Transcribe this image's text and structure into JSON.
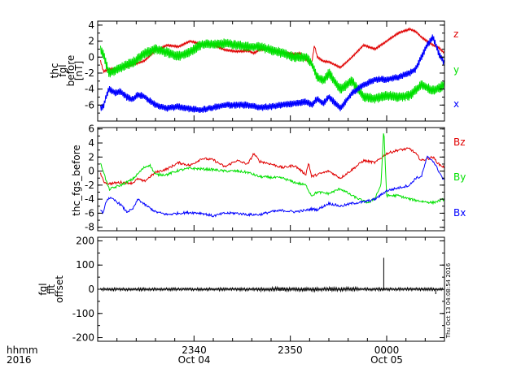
{
  "chart_data": [
    {
      "type": "line",
      "ylabel": [
        "thc",
        "fgl",
        "before",
        "[nT]"
      ],
      "ylim": [
        -8,
        4.5
      ],
      "yticks": [
        -6,
        -4,
        -2,
        0,
        2,
        4
      ],
      "x_range_hours": [
        23.5,
        24.1
      ],
      "series": [
        {
          "name": "z",
          "color": "#e00000",
          "band": 0.25,
          "points": [
            [
              23.505,
              -0.5
            ],
            [
              23.51,
              -1.8
            ],
            [
              23.52,
              -1.5
            ],
            [
              23.54,
              -1.4
            ],
            [
              23.56,
              -1.0
            ],
            [
              23.58,
              -0.5
            ],
            [
              23.6,
              0.8
            ],
            [
              23.62,
              1.5
            ],
            [
              23.64,
              1.3
            ],
            [
              23.66,
              2.0
            ],
            [
              23.68,
              1.6
            ],
            [
              23.7,
              1.5
            ],
            [
              23.72,
              0.9
            ],
            [
              23.74,
              0.7
            ],
            [
              23.76,
              0.8
            ],
            [
              23.77,
              0.5
            ],
            [
              23.78,
              0.9
            ],
            [
              23.8,
              1.0
            ],
            [
              23.82,
              0.6
            ],
            [
              23.84,
              0.4
            ],
            [
              23.85,
              0.5
            ],
            [
              23.86,
              -0.3
            ],
            [
              23.87,
              -0.9
            ],
            [
              23.875,
              1.5
            ],
            [
              23.88,
              0.0
            ],
            [
              23.89,
              -0.5
            ],
            [
              23.9,
              -0.6
            ],
            [
              23.92,
              -1.3
            ],
            [
              23.94,
              0.0
            ],
            [
              23.96,
              1.5
            ],
            [
              23.98,
              1.0
            ],
            [
              24.0,
              2.0
            ],
            [
              24.02,
              3.0
            ],
            [
              24.04,
              3.5
            ],
            [
              24.05,
              3.2
            ],
            [
              24.06,
              2.5
            ],
            [
              24.08,
              1.5
            ],
            [
              24.09,
              1.2
            ],
            [
              24.1,
              0.5
            ]
          ]
        },
        {
          "name": "y",
          "color": "#00e000",
          "band": 1.3,
          "points": [
            [
              23.505,
              1.0
            ],
            [
              23.51,
              0.3
            ],
            [
              23.515,
              -1.0
            ],
            [
              23.52,
              -2.0
            ],
            [
              23.54,
              -1.3
            ],
            [
              23.56,
              -0.7
            ],
            [
              23.58,
              0.4
            ],
            [
              23.6,
              1.0
            ],
            [
              23.62,
              0.6
            ],
            [
              23.64,
              0.1
            ],
            [
              23.66,
              0.7
            ],
            [
              23.68,
              1.6
            ],
            [
              23.7,
              1.6
            ],
            [
              23.72,
              1.7
            ],
            [
              23.74,
              1.5
            ],
            [
              23.76,
              1.3
            ],
            [
              23.78,
              1.3
            ],
            [
              23.8,
              0.9
            ],
            [
              23.82,
              0.5
            ],
            [
              23.84,
              0.0
            ],
            [
              23.86,
              0.0
            ],
            [
              23.87,
              -0.8
            ],
            [
              23.88,
              -2.5
            ],
            [
              23.89,
              -3.0
            ],
            [
              23.9,
              -2.0
            ],
            [
              23.92,
              -4.0
            ],
            [
              23.94,
              -3.0
            ],
            [
              23.96,
              -5.0
            ],
            [
              23.98,
              -5.2
            ],
            [
              24.0,
              -4.8
            ],
            [
              24.02,
              -5.0
            ],
            [
              24.04,
              -4.8
            ],
            [
              24.06,
              -3.5
            ],
            [
              24.08,
              -4.2
            ],
            [
              24.1,
              -3.5
            ]
          ]
        },
        {
          "name": "x",
          "color": "#0000ff",
          "band": 0.9,
          "points": [
            [
              23.505,
              -6.4
            ],
            [
              23.51,
              -6.2
            ],
            [
              23.515,
              -4.8
            ],
            [
              23.52,
              -4.0
            ],
            [
              23.53,
              -4.5
            ],
            [
              23.54,
              -4.3
            ],
            [
              23.55,
              -5.0
            ],
            [
              23.56,
              -5.3
            ],
            [
              23.57,
              -4.7
            ],
            [
              23.58,
              -4.9
            ],
            [
              23.6,
              -6.0
            ],
            [
              23.62,
              -6.4
            ],
            [
              23.64,
              -6.2
            ],
            [
              23.66,
              -6.5
            ],
            [
              23.68,
              -6.6
            ],
            [
              23.7,
              -6.3
            ],
            [
              23.72,
              -6.0
            ],
            [
              23.74,
              -6.0
            ],
            [
              23.76,
              -6.0
            ],
            [
              23.78,
              -6.3
            ],
            [
              23.8,
              -6.2
            ],
            [
              23.82,
              -6.0
            ],
            [
              23.84,
              -5.8
            ],
            [
              23.86,
              -5.6
            ],
            [
              23.87,
              -6.0
            ],
            [
              23.88,
              -5.2
            ],
            [
              23.89,
              -5.8
            ],
            [
              23.9,
              -5.0
            ],
            [
              23.92,
              -6.4
            ],
            [
              23.94,
              -4.5
            ],
            [
              23.96,
              -3.5
            ],
            [
              23.98,
              -2.8
            ],
            [
              24.0,
              -2.8
            ],
            [
              24.02,
              -2.5
            ],
            [
              24.04,
              -2.0
            ],
            [
              24.05,
              -1.5
            ],
            [
              24.06,
              0.0
            ],
            [
              24.07,
              1.5
            ],
            [
              24.08,
              2.5
            ],
            [
              24.09,
              0.5
            ],
            [
              24.1,
              -0.8
            ]
          ]
        }
      ]
    },
    {
      "type": "line",
      "ylabel": [
        "thc_fgs_before"
      ],
      "ylim": [
        -8.5,
        6.2
      ],
      "yticks": [
        -8,
        -6,
        -4,
        -2,
        0,
        2,
        4,
        6
      ],
      "x_range_hours": [
        23.5,
        24.1
      ],
      "series": [
        {
          "name": "Bz",
          "color": "#e00000",
          "points": [
            [
              23.505,
              -0.3
            ],
            [
              23.51,
              -1.5
            ],
            [
              23.52,
              -1.8
            ],
            [
              23.54,
              -1.6
            ],
            [
              23.56,
              -1.7
            ],
            [
              23.57,
              -1.1
            ],
            [
              23.58,
              -1.5
            ],
            [
              23.6,
              -0.2
            ],
            [
              23.62,
              0.3
            ],
            [
              23.64,
              1.2
            ],
            [
              23.66,
              0.8
            ],
            [
              23.68,
              1.8
            ],
            [
              23.7,
              1.6
            ],
            [
              23.72,
              0.6
            ],
            [
              23.74,
              1.5
            ],
            [
              23.76,
              1.0
            ],
            [
              23.77,
              2.5
            ],
            [
              23.78,
              1.4
            ],
            [
              23.8,
              1.0
            ],
            [
              23.82,
              0.5
            ],
            [
              23.84,
              0.8
            ],
            [
              23.85,
              0.2
            ],
            [
              23.86,
              -0.5
            ],
            [
              23.865,
              1.2
            ],
            [
              23.87,
              -0.8
            ],
            [
              23.88,
              -0.5
            ],
            [
              23.9,
              0.0
            ],
            [
              23.92,
              -1.0
            ],
            [
              23.94,
              0.2
            ],
            [
              23.96,
              1.5
            ],
            [
              23.98,
              1.2
            ],
            [
              24.0,
              2.5
            ],
            [
              24.02,
              3.0
            ],
            [
              24.04,
              3.2
            ],
            [
              24.05,
              2.5
            ],
            [
              24.06,
              1.5
            ],
            [
              24.08,
              2.0
            ],
            [
              24.09,
              1.0
            ],
            [
              24.1,
              0.5
            ]
          ]
        },
        {
          "name": "By",
          "color": "#00e000",
          "points": [
            [
              23.505,
              1.0
            ],
            [
              23.51,
              0.0
            ],
            [
              23.515,
              -1.5
            ],
            [
              23.52,
              -2.6
            ],
            [
              23.54,
              -2.0
            ],
            [
              23.56,
              -1.2
            ],
            [
              23.58,
              0.5
            ],
            [
              23.59,
              0.9
            ],
            [
              23.6,
              -0.5
            ],
            [
              23.62,
              -0.5
            ],
            [
              23.64,
              0.1
            ],
            [
              23.66,
              0.4
            ],
            [
              23.68,
              0.3
            ],
            [
              23.7,
              0.2
            ],
            [
              23.72,
              0.0
            ],
            [
              23.74,
              0.0
            ],
            [
              23.76,
              -0.2
            ],
            [
              23.78,
              -0.8
            ],
            [
              23.8,
              -0.9
            ],
            [
              23.82,
              -1.0
            ],
            [
              23.84,
              -1.6
            ],
            [
              23.86,
              -2.0
            ],
            [
              23.87,
              -3.5
            ],
            [
              23.88,
              -3.0
            ],
            [
              23.9,
              -3.2
            ],
            [
              23.92,
              -2.5
            ],
            [
              23.94,
              -3.5
            ],
            [
              23.96,
              -4.3
            ],
            [
              23.97,
              -4.5
            ],
            [
              23.98,
              -3.8
            ],
            [
              23.99,
              -2.0
            ],
            [
              23.995,
              6.0
            ],
            [
              24.0,
              -3.5
            ],
            [
              24.02,
              -3.5
            ],
            [
              24.04,
              -4.0
            ],
            [
              24.06,
              -4.3
            ],
            [
              24.08,
              -4.5
            ],
            [
              24.1,
              -4.0
            ]
          ]
        },
        {
          "name": "Bx",
          "color": "#0000ff",
          "points": [
            [
              23.505,
              -5.6
            ],
            [
              23.51,
              -6.0
            ],
            [
              23.515,
              -4.2
            ],
            [
              23.52,
              -3.8
            ],
            [
              23.53,
              -4.2
            ],
            [
              23.54,
              -4.8
            ],
            [
              23.55,
              -5.8
            ],
            [
              23.56,
              -5.5
            ],
            [
              23.57,
              -4.0
            ],
            [
              23.58,
              -4.7
            ],
            [
              23.6,
              -5.8
            ],
            [
              23.62,
              -6.2
            ],
            [
              23.64,
              -6.0
            ],
            [
              23.66,
              -5.9
            ],
            [
              23.68,
              -6.0
            ],
            [
              23.7,
              -6.4
            ],
            [
              23.72,
              -6.0
            ],
            [
              23.74,
              -6.0
            ],
            [
              23.76,
              -6.2
            ],
            [
              23.78,
              -6.2
            ],
            [
              23.8,
              -5.8
            ],
            [
              23.82,
              -5.6
            ],
            [
              23.84,
              -5.8
            ],
            [
              23.86,
              -5.6
            ],
            [
              23.87,
              -5.4
            ],
            [
              23.88,
              -5.5
            ],
            [
              23.9,
              -4.6
            ],
            [
              23.92,
              -5.0
            ],
            [
              23.94,
              -4.6
            ],
            [
              23.96,
              -4.4
            ],
            [
              23.98,
              -4.0
            ],
            [
              24.0,
              -2.8
            ],
            [
              24.02,
              -2.4
            ],
            [
              24.04,
              -2.0
            ],
            [
              24.05,
              -1.0
            ],
            [
              24.06,
              -0.8
            ],
            [
              24.07,
              2.0
            ],
            [
              24.08,
              1.5
            ],
            [
              24.09,
              0.0
            ],
            [
              24.1,
              -1.5
            ]
          ]
        }
      ]
    },
    {
      "type": "line",
      "ylabel": [
        "fgl",
        "fit",
        "offset"
      ],
      "ylim": [
        -215,
        215
      ],
      "yticks": [
        -200,
        -100,
        0,
        100,
        200
      ],
      "x_range_hours": [
        23.5,
        24.1
      ],
      "series": [
        {
          "name": "",
          "color": "#000000",
          "noise_amplitude": 6,
          "noise_step_hours": 0.0015,
          "spikes": [
            [
              23.995,
              130
            ],
            [
              24.085,
              -20
            ]
          ]
        }
      ]
    }
  ],
  "x_axis": {
    "tick_label_top": [
      "2340",
      "2350",
      "0000",
      "0000"
    ],
    "tick_label_bottom": [
      "Oct 04",
      "",
      "Oct 05",
      ""
    ],
    "tick_hours": [
      23.667,
      23.833,
      24.0,
      24.0
    ],
    "corner_label_top": "hhmm",
    "corner_label_bottom": "2016"
  },
  "timestamp": "Thu Oct 13 04:08:54 2016"
}
